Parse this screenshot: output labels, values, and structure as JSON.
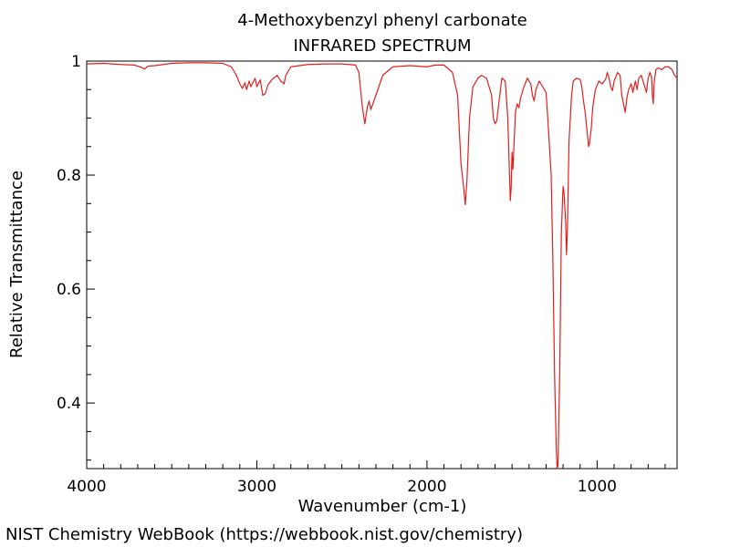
{
  "chart_data": {
    "type": "line",
    "title": "4-Methoxybenzyl phenyl carbonate",
    "subtitle": "INFRARED SPECTRUM",
    "xlabel": "Wavenumber (cm-1)",
    "ylabel": "Relative Transmittance",
    "xlim": [
      4000,
      530
    ],
    "ylim": [
      0.285,
      1.0
    ],
    "x_ticks": [
      4000,
      3000,
      2000,
      1000
    ],
    "x_tick_labels": [
      "4000",
      "3000",
      "2000",
      "1000"
    ],
    "y_ticks": [
      1.0,
      0.8,
      0.6,
      0.4
    ],
    "y_tick_labels": [
      "1",
      "0.8",
      "0.6",
      "0.4"
    ],
    "grid": false,
    "line_color": "#e02020",
    "series": [
      {
        "points": [
          [
            4000,
            0.995
          ],
          [
            3900,
            0.996
          ],
          [
            3800,
            0.994
          ],
          [
            3720,
            0.993
          ],
          [
            3680,
            0.989
          ],
          [
            3660,
            0.986
          ],
          [
            3640,
            0.991
          ],
          [
            3600,
            0.992
          ],
          [
            3500,
            0.996
          ],
          [
            3400,
            0.997
          ],
          [
            3300,
            0.997
          ],
          [
            3200,
            0.996
          ],
          [
            3150,
            0.99
          ],
          [
            3120,
            0.975
          ],
          [
            3100,
            0.96
          ],
          [
            3085,
            0.952
          ],
          [
            3070,
            0.962
          ],
          [
            3060,
            0.95
          ],
          [
            3045,
            0.965
          ],
          [
            3035,
            0.955
          ],
          [
            3010,
            0.97
          ],
          [
            3000,
            0.955
          ],
          [
            2980,
            0.967
          ],
          [
            2965,
            0.94
          ],
          [
            2950,
            0.943
          ],
          [
            2935,
            0.958
          ],
          [
            2910,
            0.968
          ],
          [
            2880,
            0.975
          ],
          [
            2860,
            0.965
          ],
          [
            2840,
            0.96
          ],
          [
            2830,
            0.975
          ],
          [
            2800,
            0.99
          ],
          [
            2700,
            0.994
          ],
          [
            2600,
            0.995
          ],
          [
            2500,
            0.995
          ],
          [
            2420,
            0.993
          ],
          [
            2400,
            0.98
          ],
          [
            2380,
            0.92
          ],
          [
            2365,
            0.89
          ],
          [
            2350,
            0.92
          ],
          [
            2340,
            0.93
          ],
          [
            2330,
            0.915
          ],
          [
            2300,
            0.94
          ],
          [
            2260,
            0.975
          ],
          [
            2200,
            0.99
          ],
          [
            2100,
            0.992
          ],
          [
            2000,
            0.99
          ],
          [
            1950,
            0.993
          ],
          [
            1900,
            0.993
          ],
          [
            1850,
            0.98
          ],
          [
            1820,
            0.94
          ],
          [
            1800,
            0.82
          ],
          [
            1785,
            0.78
          ],
          [
            1775,
            0.748
          ],
          [
            1765,
            0.79
          ],
          [
            1750,
            0.9
          ],
          [
            1730,
            0.955
          ],
          [
            1700,
            0.97
          ],
          [
            1680,
            0.975
          ],
          [
            1650,
            0.97
          ],
          [
            1620,
            0.94
          ],
          [
            1610,
            0.9
          ],
          [
            1600,
            0.89
          ],
          [
            1590,
            0.895
          ],
          [
            1580,
            0.92
          ],
          [
            1560,
            0.97
          ],
          [
            1540,
            0.965
          ],
          [
            1525,
            0.9
          ],
          [
            1515,
            0.8
          ],
          [
            1510,
            0.755
          ],
          [
            1505,
            0.78
          ],
          [
            1500,
            0.84
          ],
          [
            1495,
            0.81
          ],
          [
            1490,
            0.843
          ],
          [
            1480,
            0.91
          ],
          [
            1470,
            0.925
          ],
          [
            1460,
            0.918
          ],
          [
            1450,
            0.935
          ],
          [
            1430,
            0.955
          ],
          [
            1410,
            0.97
          ],
          [
            1390,
            0.96
          ],
          [
            1380,
            0.94
          ],
          [
            1370,
            0.93
          ],
          [
            1360,
            0.95
          ],
          [
            1340,
            0.965
          ],
          [
            1320,
            0.955
          ],
          [
            1300,
            0.945
          ],
          [
            1290,
            0.9
          ],
          [
            1280,
            0.85
          ],
          [
            1270,
            0.8
          ],
          [
            1260,
            0.65
          ],
          [
            1250,
            0.45
          ],
          [
            1240,
            0.32
          ],
          [
            1235,
            0.285
          ],
          [
            1230,
            0.29
          ],
          [
            1220,
            0.45
          ],
          [
            1210,
            0.7
          ],
          [
            1200,
            0.78
          ],
          [
            1195,
            0.77
          ],
          [
            1185,
            0.72
          ],
          [
            1180,
            0.66
          ],
          [
            1175,
            0.7
          ],
          [
            1165,
            0.86
          ],
          [
            1150,
            0.94
          ],
          [
            1140,
            0.965
          ],
          [
            1120,
            0.97
          ],
          [
            1100,
            0.968
          ],
          [
            1090,
            0.955
          ],
          [
            1080,
            0.93
          ],
          [
            1070,
            0.91
          ],
          [
            1060,
            0.88
          ],
          [
            1050,
            0.85
          ],
          [
            1045,
            0.855
          ],
          [
            1035,
            0.88
          ],
          [
            1025,
            0.92
          ],
          [
            1010,
            0.95
          ],
          [
            990,
            0.965
          ],
          [
            970,
            0.96
          ],
          [
            950,
            0.968
          ],
          [
            940,
            0.98
          ],
          [
            930,
            0.97
          ],
          [
            920,
            0.955
          ],
          [
            910,
            0.948
          ],
          [
            900,
            0.965
          ],
          [
            880,
            0.98
          ],
          [
            865,
            0.975
          ],
          [
            855,
            0.94
          ],
          [
            845,
            0.925
          ],
          [
            835,
            0.91
          ],
          [
            825,
            0.935
          ],
          [
            815,
            0.95
          ],
          [
            800,
            0.96
          ],
          [
            790,
            0.945
          ],
          [
            775,
            0.965
          ],
          [
            765,
            0.95
          ],
          [
            755,
            0.97
          ],
          [
            740,
            0.975
          ],
          [
            720,
            0.955
          ],
          [
            710,
            0.945
          ],
          [
            700,
            0.97
          ],
          [
            690,
            0.98
          ],
          [
            680,
            0.972
          ],
          [
            675,
            0.94
          ],
          [
            670,
            0.925
          ],
          [
            665,
            0.96
          ],
          [
            655,
            0.985
          ],
          [
            640,
            0.988
          ],
          [
            620,
            0.985
          ],
          [
            600,
            0.99
          ],
          [
            580,
            0.99
          ],
          [
            560,
            0.985
          ],
          [
            545,
            0.975
          ],
          [
            530,
            0.97
          ]
        ]
      }
    ]
  },
  "footer": {
    "credit": "NIST Chemistry WebBook (https://webbook.nist.gov/chemistry)"
  }
}
